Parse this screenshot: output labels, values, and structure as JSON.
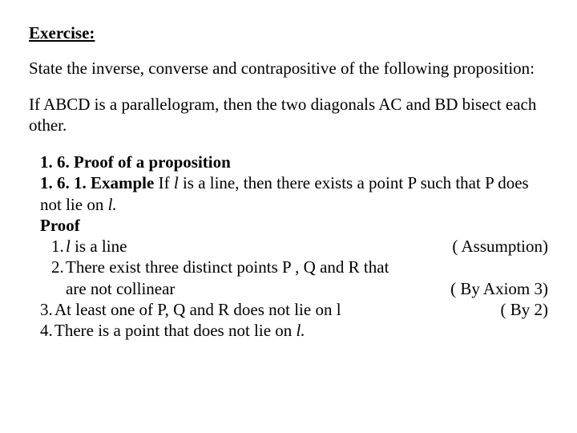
{
  "heading": "Exercise:",
  "intro1": "State the inverse, converse and contrapositive of the following proposition:",
  "intro2": "If   ABCD is a parallelogram, then the two diagonals AC and BD bisect each other.",
  "section_num": "1. 6. Proof of a proposition",
  "example_label": "1. 6. 1. Example",
  "example_pre": "  If  ",
  "example_l": "l",
  "example_mid": "  is a line, then there exists a point P such that P does not lie on ",
  "example_l2": "l.",
  "proof_label": "Proof",
  "step1_num": "1.",
  "step1_l": "l",
  "step1_txt": "  is a line",
  "step1_reason": "( Assumption)",
  "step2_num": "2.",
  "step2_txt": "There exist  three distinct points P , Q  and R that",
  "step2b_txt": "are  not  collinear",
  "step2_reason": "( By Axiom 3)",
  "step3_num": "3.",
  "step3_txt": "At least one of  P, Q and R does not lie on l",
  "step3_reason": "( By 2)",
  "step4_num": "4.",
  "step4_txt": "There is a point that does not lie on ",
  "step4_l": "l."
}
